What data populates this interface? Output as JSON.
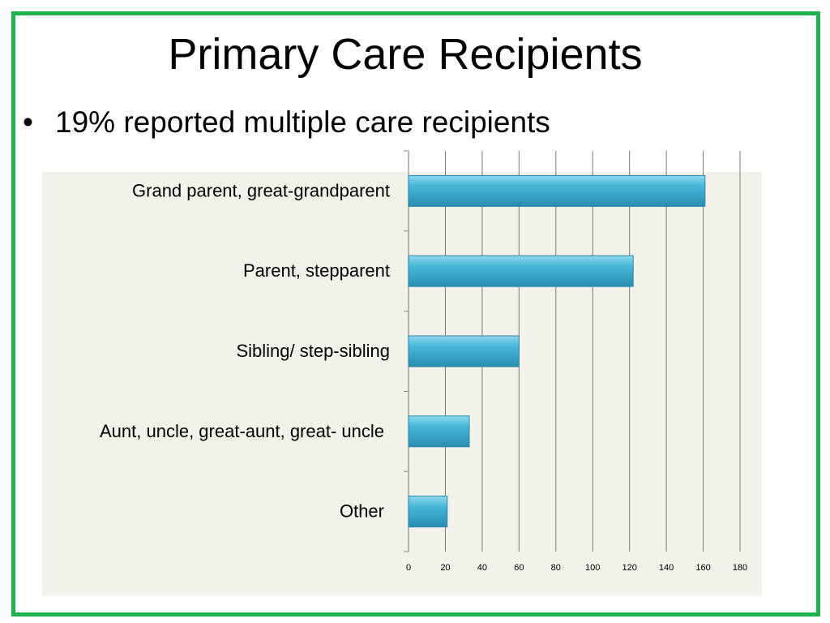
{
  "slide": {
    "title": "Primary Care Recipients",
    "bullet": "19% reported multiple care recipients",
    "bullet_marker": "•",
    "border_color": "#1fb14e"
  },
  "chart_data": {
    "type": "bar",
    "orientation": "horizontal",
    "categories": [
      "Grand parent, great-grandparent",
      "Parent, stepparent",
      "Sibling/ step-sibling",
      "Aunt,  uncle, great-aunt, great- uncle",
      "Other"
    ],
    "values": [
      161,
      122,
      60,
      33,
      21
    ],
    "xlim": [
      0,
      180
    ],
    "xticks": [
      0,
      20,
      40,
      60,
      80,
      100,
      120,
      140,
      160,
      180
    ],
    "grid": true,
    "bar_color": "#3aa9cc",
    "plot_background": "#f2f1ea"
  }
}
